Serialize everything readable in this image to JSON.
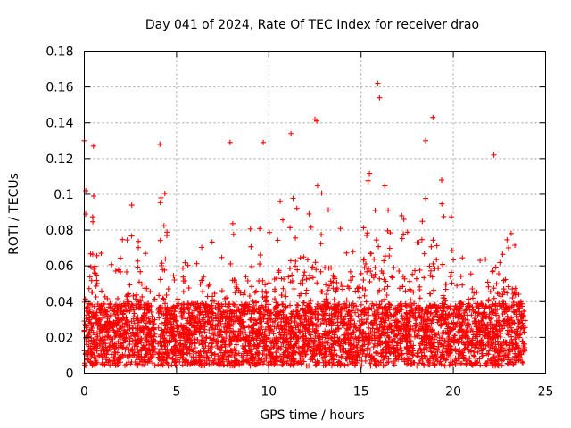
{
  "chart_data": {
    "type": "scatter",
    "title": "Day 041 of 2024, Rate Of TEC Index for receiver drao",
    "xlabel": "GPS time / hours",
    "ylabel": "ROTI / TECUs",
    "xlim": [
      0,
      25
    ],
    "ylim": [
      0,
      0.18
    ],
    "x_ticks": [
      "0",
      "5",
      "10",
      "15",
      "20",
      "25"
    ],
    "y_ticks": [
      "0",
      "0.02",
      "0.04",
      "0.06",
      "0.08",
      "0.1",
      "0.12",
      "0.14",
      "0.16",
      "0.18"
    ],
    "grid": true,
    "marker": "plus",
    "color": "#ff0000",
    "data_gaps_hours": [
      [
        3.85,
        4.0
      ],
      [
        23.9,
        24.0
      ]
    ],
    "notable_points": [
      {
        "x": 0.0,
        "y": 0.13
      },
      {
        "x": 0.5,
        "y": 0.127
      },
      {
        "x": 4.1,
        "y": 0.128
      },
      {
        "x": 7.9,
        "y": 0.129
      },
      {
        "x": 9.7,
        "y": 0.129
      },
      {
        "x": 11.2,
        "y": 0.134
      },
      {
        "x": 12.5,
        "y": 0.142
      },
      {
        "x": 12.6,
        "y": 0.141
      },
      {
        "x": 15.9,
        "y": 0.162
      },
      {
        "x": 16.0,
        "y": 0.154
      },
      {
        "x": 18.9,
        "y": 0.143
      },
      {
        "x": 18.5,
        "y": 0.13
      },
      {
        "x": 22.2,
        "y": 0.122
      }
    ],
    "envelope": [
      {
        "x": 0.0,
        "y": 0.1
      },
      {
        "x": 0.3,
        "y": 0.11
      },
      {
        "x": 0.6,
        "y": 0.1
      },
      {
        "x": 1.0,
        "y": 0.07
      },
      {
        "x": 1.5,
        "y": 0.06
      },
      {
        "x": 2.0,
        "y": 0.07
      },
      {
        "x": 2.5,
        "y": 0.1
      },
      {
        "x": 3.0,
        "y": 0.09
      },
      {
        "x": 3.5,
        "y": 0.07
      },
      {
        "x": 3.8,
        "y": 0.05
      },
      {
        "x": 4.1,
        "y": 0.11
      },
      {
        "x": 4.5,
        "y": 0.09
      },
      {
        "x": 5.0,
        "y": 0.05
      },
      {
        "x": 5.5,
        "y": 0.06
      },
      {
        "x": 6.0,
        "y": 0.06
      },
      {
        "x": 6.5,
        "y": 0.09
      },
      {
        "x": 7.0,
        "y": 0.07
      },
      {
        "x": 7.5,
        "y": 0.06
      },
      {
        "x": 8.0,
        "y": 0.08
      },
      {
        "x": 8.5,
        "y": 0.09
      },
      {
        "x": 9.0,
        "y": 0.08
      },
      {
        "x": 9.5,
        "y": 0.09
      },
      {
        "x": 10.0,
        "y": 0.08
      },
      {
        "x": 10.5,
        "y": 0.09
      },
      {
        "x": 11.0,
        "y": 0.1
      },
      {
        "x": 11.5,
        "y": 0.11
      },
      {
        "x": 12.0,
        "y": 0.1
      },
      {
        "x": 12.5,
        "y": 0.12
      },
      {
        "x": 13.0,
        "y": 0.1
      },
      {
        "x": 13.5,
        "y": 0.09
      },
      {
        "x": 14.0,
        "y": 0.08
      },
      {
        "x": 14.5,
        "y": 0.09
      },
      {
        "x": 15.0,
        "y": 0.1
      },
      {
        "x": 15.5,
        "y": 0.11
      },
      {
        "x": 16.0,
        "y": 0.1
      },
      {
        "x": 16.5,
        "y": 0.11
      },
      {
        "x": 17.0,
        "y": 0.09
      },
      {
        "x": 17.5,
        "y": 0.08
      },
      {
        "x": 18.0,
        "y": 0.09
      },
      {
        "x": 18.5,
        "y": 0.11
      },
      {
        "x": 19.0,
        "y": 0.12
      },
      {
        "x": 19.5,
        "y": 0.1
      },
      {
        "x": 20.0,
        "y": 0.08
      },
      {
        "x": 20.5,
        "y": 0.09
      },
      {
        "x": 21.0,
        "y": 0.07
      },
      {
        "x": 21.5,
        "y": 0.07
      },
      {
        "x": 22.0,
        "y": 0.09
      },
      {
        "x": 22.5,
        "y": 0.1
      },
      {
        "x": 23.0,
        "y": 0.08
      },
      {
        "x": 23.5,
        "y": 0.07
      },
      {
        "x": 23.9,
        "y": 0.05
      }
    ]
  }
}
